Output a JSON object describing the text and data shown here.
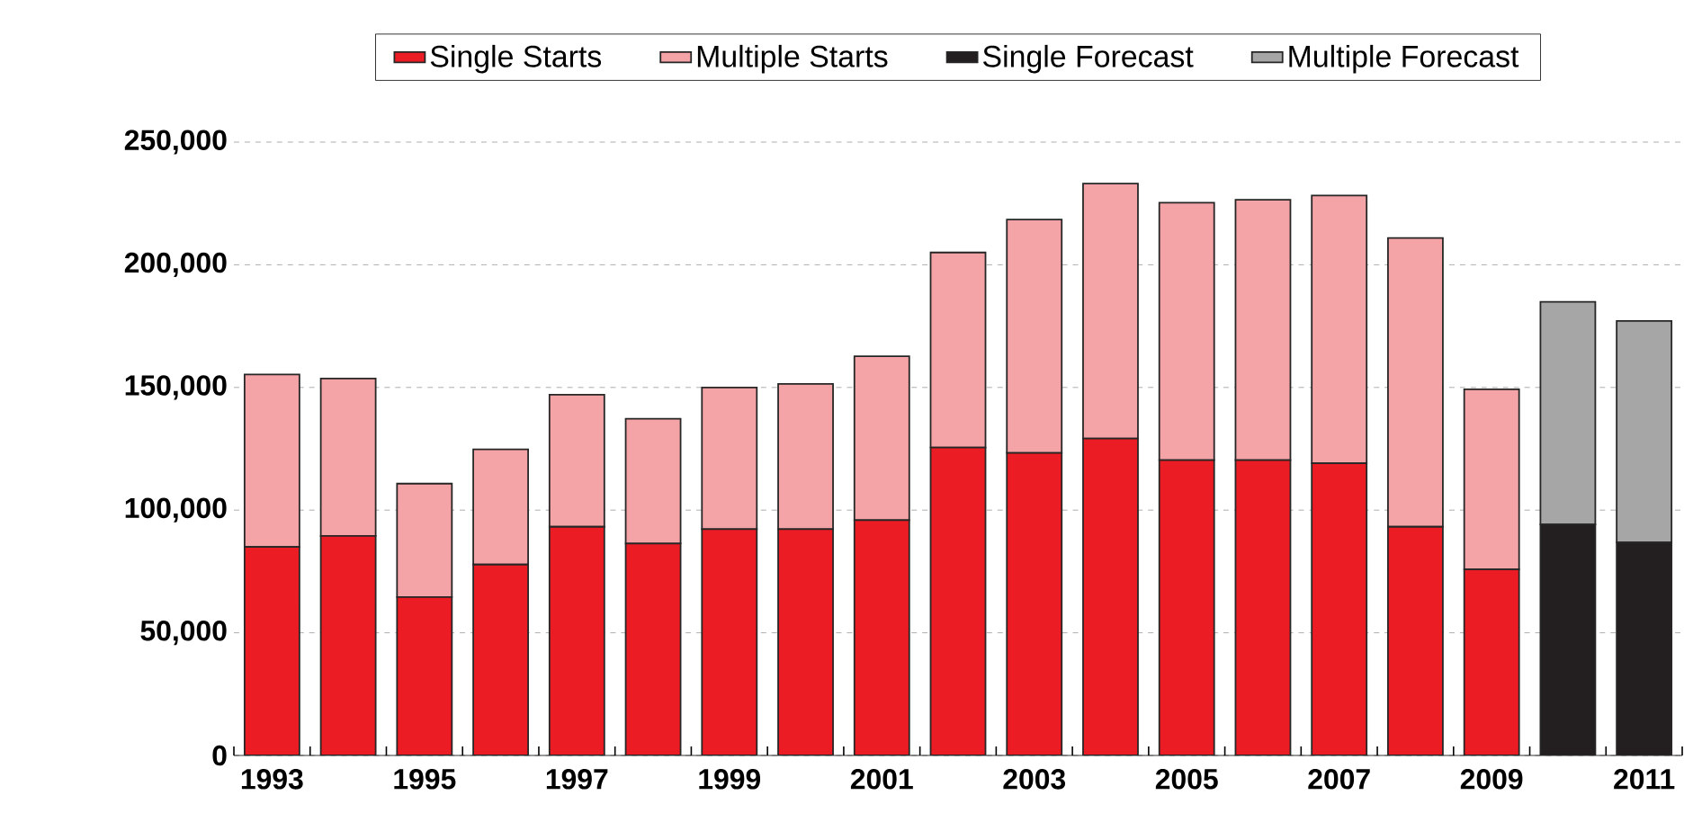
{
  "chart_data": {
    "type": "bar",
    "stacked": true,
    "categories": [
      "1993",
      null,
      "1995",
      null,
      "1997",
      null,
      "1999",
      null,
      "2001",
      null,
      "2003",
      null,
      "2005",
      null,
      "2007",
      null,
      "2009",
      null,
      "2011"
    ],
    "series": [
      {
        "name": "Single Starts",
        "color": "#ec1c24",
        "values": [
          85000,
          89500,
          64600,
          77800,
          93200,
          86400,
          92200,
          92200,
          95900,
          125500,
          123300,
          129200,
          120400,
          120400,
          119100,
          93200,
          75800,
          null,
          null
        ]
      },
      {
        "name": "Multiple Starts",
        "color": "#f4a3a6",
        "values": [
          70300,
          64100,
          46200,
          47000,
          53800,
          50800,
          57800,
          59200,
          66800,
          79500,
          95100,
          103900,
          104900,
          106100,
          109100,
          117700,
          73400,
          null,
          null
        ]
      },
      {
        "name": "Single Forecast",
        "color": "#231f20",
        "values": [
          null,
          null,
          null,
          null,
          null,
          null,
          null,
          null,
          null,
          null,
          null,
          null,
          null,
          null,
          null,
          null,
          null,
          94200,
          86800
        ]
      },
      {
        "name": "Multiple Forecast",
        "color": "#a6a6a6",
        "values": [
          null,
          null,
          null,
          null,
          null,
          null,
          null,
          null,
          null,
          null,
          null,
          null,
          null,
          null,
          null,
          null,
          null,
          90700,
          90300
        ]
      }
    ],
    "ylim": [
      0,
      250000
    ],
    "yticks": [
      0,
      {
        "value": 50000,
        "label": "50,000"
      },
      {
        "value": 100000,
        "label": "100,000"
      },
      {
        "value": 150000,
        "label": "150,000"
      },
      {
        "value": 200000,
        "label": "200,000"
      },
      {
        "value": 250000,
        "label": "250,000"
      }
    ],
    "grid": "y",
    "legend": "top"
  }
}
